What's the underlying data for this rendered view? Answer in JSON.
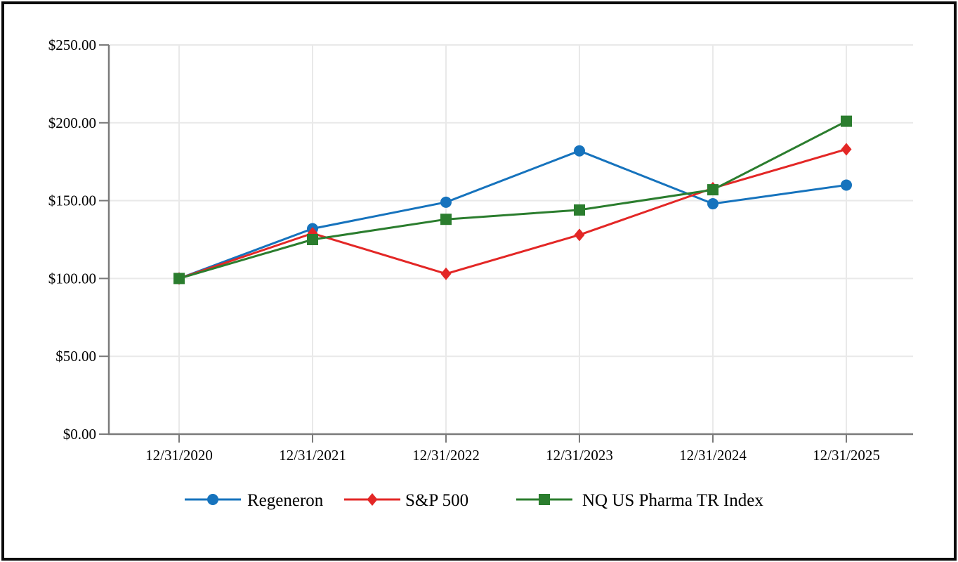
{
  "chart_data": {
    "type": "line",
    "title": "",
    "x_labels": [
      "12/31/2020",
      "12/31/2021",
      "12/31/2022",
      "12/31/2023",
      "12/31/2024",
      "12/31/2025"
    ],
    "y_ticks": [
      {
        "value": 0,
        "label": "$0.00"
      },
      {
        "value": 50,
        "label": "$50.00"
      },
      {
        "value": 100,
        "label": "$100.00"
      },
      {
        "value": 150,
        "label": "$150.00"
      },
      {
        "value": 200,
        "label": "$200.00"
      },
      {
        "value": 250,
        "label": "$250.00"
      }
    ],
    "ylim": [
      0,
      250
    ],
    "grid": true,
    "legend_position": "bottom",
    "series": [
      {
        "name": "Regeneron",
        "marker": "circle",
        "color": "#1673BD",
        "values": [
          100,
          132,
          149,
          182,
          148,
          160
        ]
      },
      {
        "name": "S&P 500",
        "marker": "diamond",
        "color": "#E32726",
        "values": [
          100,
          129,
          103,
          128,
          158,
          183
        ]
      },
      {
        "name": "NQ US Pharma TR Index",
        "marker": "square",
        "color": "#2B7D2E",
        "values": [
          100,
          125,
          138,
          144,
          157,
          201
        ]
      }
    ],
    "colors": {
      "axis": "#7A7A7A",
      "grid": "#E9E9E9",
      "text": "#000000",
      "frame": "#0A0A0A",
      "background": "#FFFFFF"
    }
  }
}
